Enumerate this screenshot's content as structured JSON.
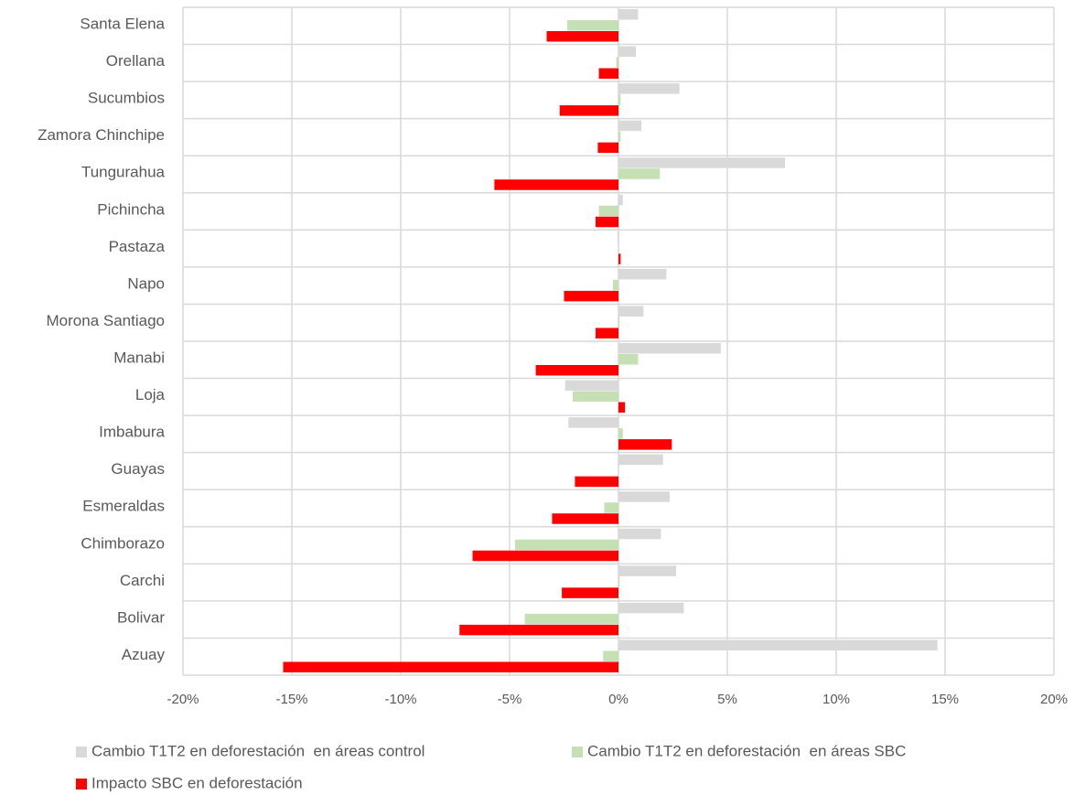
{
  "chart_data": {
    "type": "barh",
    "categories": [
      "Santa Elena",
      "Orellana",
      "Sucumbios",
      "Zamora Chinchipe",
      "Tungurahua",
      "Pichincha",
      "Pastaza",
      "Napo",
      "Morona Santiago",
      "Manabi",
      "Loja",
      "Imbabura",
      "Guayas",
      "Esmeraldas",
      "Chimborazo",
      "Carchi",
      "Bolivar",
      "Azuay"
    ],
    "series": [
      {
        "name": "Cambio T1T2 en deforestación  en áreas control",
        "color": "#d9d9d9",
        "values": [
          0.9,
          0.8,
          2.8,
          1.05,
          7.65,
          0.2,
          -0.05,
          2.2,
          1.15,
          4.7,
          -2.45,
          -2.3,
          2.05,
          2.35,
          1.95,
          2.65,
          3.0,
          14.65
        ]
      },
      {
        "name": "Cambio T1T2 en deforestación  en áreas SBC",
        "color": "#c5e0b3",
        "values": [
          -2.35,
          -0.1,
          0.1,
          0.1,
          1.9,
          -0.9,
          0,
          -0.25,
          0.05,
          0.9,
          -2.1,
          0.2,
          0,
          -0.65,
          -4.75,
          0.05,
          -4.3,
          -0.7
        ]
      },
      {
        "name": "Impacto SBC en deforestación",
        "color": "#ff0000",
        "values": [
          -3.3,
          -0.9,
          -2.7,
          -0.95,
          -5.7,
          -1.05,
          0.1,
          -2.5,
          -1.05,
          -3.8,
          0.3,
          2.45,
          -2.0,
          -3.05,
          -6.7,
          -2.6,
          -7.3,
          -15.4
        ]
      }
    ],
    "xlim": [
      -20,
      20
    ],
    "xticks": [
      {
        "value": -20,
        "label": "-20%"
      },
      {
        "value": -15,
        "label": "-15%"
      },
      {
        "value": -10,
        "label": "-10%"
      },
      {
        "value": -5,
        "label": "-5%"
      },
      {
        "value": 0,
        "label": "0%"
      },
      {
        "value": 5,
        "label": "5%"
      },
      {
        "value": 10,
        "label": "10%"
      },
      {
        "value": 15,
        "label": "15%"
      },
      {
        "value": 20,
        "label": "20%"
      }
    ],
    "grid": true,
    "legend": "bottom"
  }
}
